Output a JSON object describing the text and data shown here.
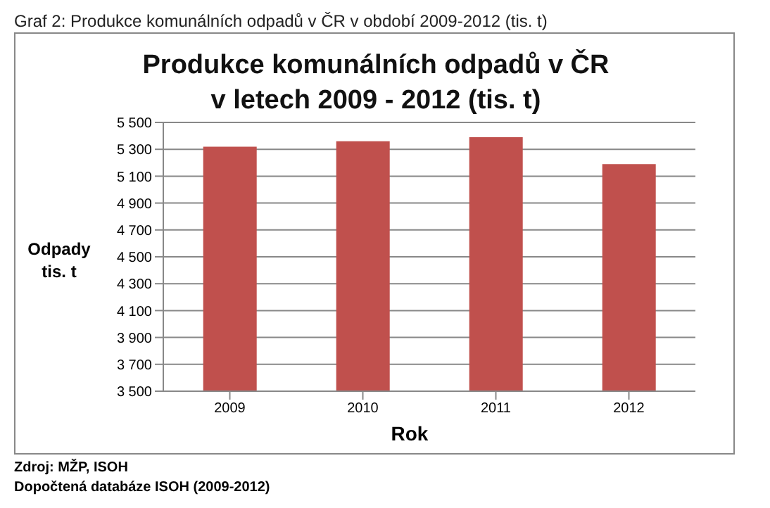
{
  "chart_data": {
    "type": "bar",
    "title": "Produkce komunálních odpadů v ČR\nv letech 2009 - 2012 (tis. t)",
    "subtitle": "Graf 2: Produkce komunálních odpadů v ČR v období 2009-2012 (tis. t)",
    "xlabel": "Rok",
    "ylabel": "Odpady\ntis. t",
    "categories": [
      "2009",
      "2010",
      "2011",
      "2012"
    ],
    "values": [
      5320,
      5360,
      5390,
      5190
    ],
    "color": "#c0504d",
    "ylim": [
      3500,
      5500
    ],
    "yticks": [
      {
        "value": 3500,
        "label": "3 500"
      },
      {
        "value": 3700,
        "label": "3 700"
      },
      {
        "value": 3900,
        "label": "3 900"
      },
      {
        "value": 4100,
        "label": "4 100"
      },
      {
        "value": 4300,
        "label": "4 300"
      },
      {
        "value": 4500,
        "label": "4 500"
      },
      {
        "value": 4700,
        "label": "4 700"
      },
      {
        "value": 4900,
        "label": "4 900"
      },
      {
        "value": 5100,
        "label": "5 100"
      },
      {
        "value": 5300,
        "label": "5 300"
      },
      {
        "value": 5500,
        "label": "5 500"
      }
    ],
    "grid": "y",
    "legend": false,
    "annotations": [
      "Zdroj: MŽP, ISOH",
      "Dopočtená databáze ISOH (2009-2012)"
    ]
  }
}
